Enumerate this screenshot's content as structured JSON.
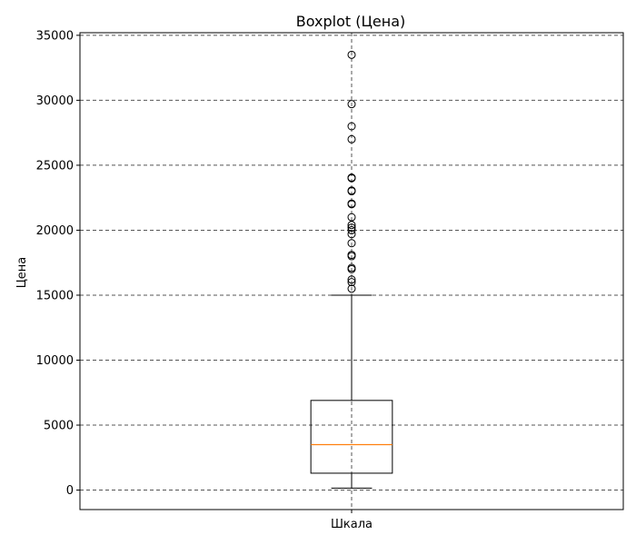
{
  "chart_data": {
    "type": "boxplot",
    "title": "Boxplot (Цена)",
    "xlabel": "",
    "ylabel": "Цена",
    "ylim": [
      -1500,
      35200
    ],
    "yticks": [
      0,
      5000,
      10000,
      15000,
      20000,
      25000,
      30000,
      35000
    ],
    "categories": [
      "Шкала"
    ],
    "grid": true,
    "boxes": [
      {
        "category": "Шкала",
        "whisker_low": 150,
        "q1": 1300,
        "median": 3500,
        "q3": 6900,
        "whisker_high": 15000,
        "outliers": [
          15500,
          16000,
          16200,
          17000,
          17100,
          18000,
          18100,
          19000,
          19700,
          20000,
          20200,
          20400,
          21000,
          22000,
          22050,
          23000,
          23050,
          24000,
          24050,
          27000,
          28000,
          29700,
          33500
        ]
      }
    ],
    "colors": {
      "box": "#000000",
      "median": "#ff7f0e",
      "grid": "#555555",
      "outlier": "#000000"
    }
  }
}
